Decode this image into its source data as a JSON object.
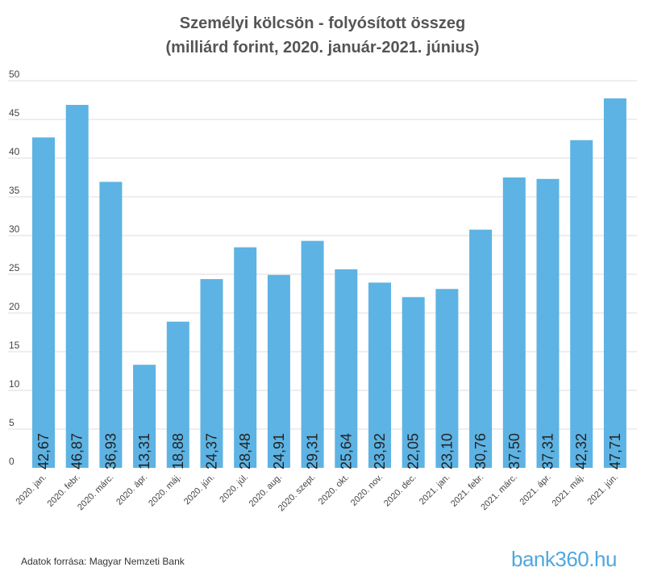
{
  "title_line1": "Személyi kölcsön - folyósított összeg",
  "title_line2": "(milliárd forint, 2020. január-2021. június)",
  "source": "Adatok forrása: Magyar Nemzeti Bank",
  "brand": "bank360.hu",
  "colors": {
    "bar": "#5db3e3",
    "grid": "#dddddd",
    "axis_text": "#444444",
    "bar_label": "#222222"
  },
  "chart_data": {
    "type": "bar",
    "title": "Személyi kölcsön - folyósított összeg (milliárd forint, 2020. január-2021. június)",
    "xlabel": "",
    "ylabel": "",
    "ylim": [
      0,
      50
    ],
    "yticks": [
      0,
      5,
      10,
      15,
      20,
      25,
      30,
      35,
      40,
      45,
      50
    ],
    "grid": true,
    "categories": [
      "2020. jan.",
      "2020. febr.",
      "2020. márc.",
      "2020. ápr.",
      "2020. máj.",
      "2020. jún.",
      "2020. júl.",
      "2020. aug.",
      "2020. szept.",
      "2020. okt.",
      "2020. nov.",
      "2020. dec.",
      "2021. jan.",
      "2021. febr.",
      "2021. márc.",
      "2021. ápr.",
      "2021. máj.",
      "2021. jún."
    ],
    "values": [
      42.67,
      46.87,
      36.93,
      13.31,
      18.88,
      24.37,
      28.48,
      24.91,
      29.31,
      25.64,
      23.92,
      22.05,
      23.1,
      30.76,
      37.5,
      37.31,
      42.32,
      47.71
    ],
    "labels": [
      "42,67",
      "46,87",
      "36,93",
      "13,31",
      "18,88",
      "24,37",
      "28,48",
      "24,91",
      "29,31",
      "25,64",
      "23,92",
      "22,05",
      "23,10",
      "30,76",
      "37,50",
      "37,31",
      "42,32",
      "47,71"
    ]
  }
}
